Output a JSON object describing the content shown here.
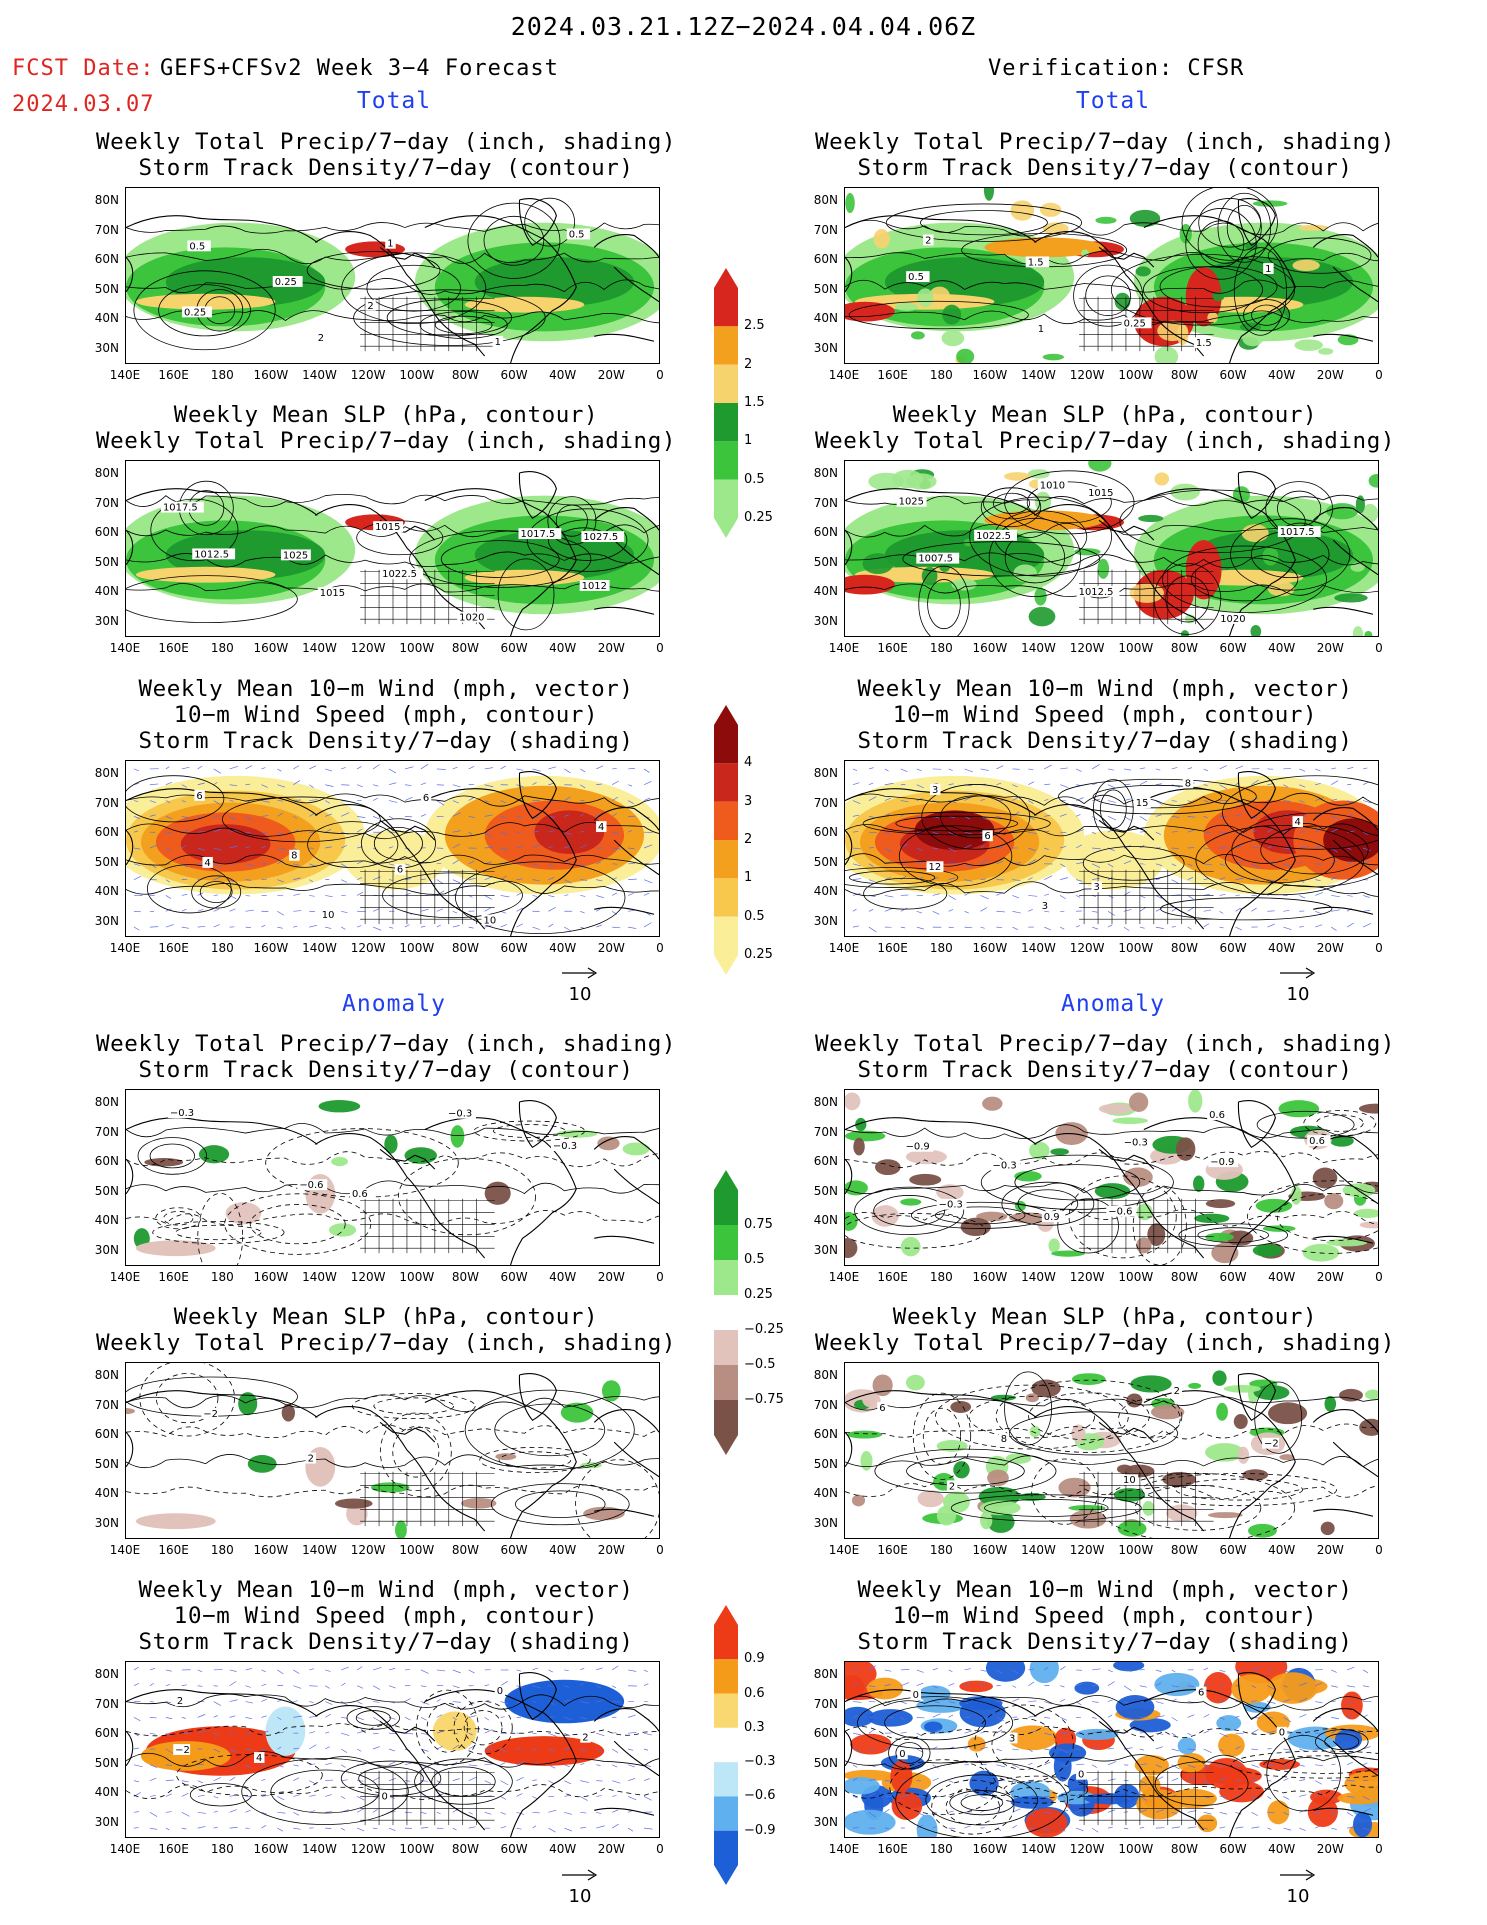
{
  "header": {
    "period": "2024.03.21.12Z−2024.04.04.06Z",
    "fcst_label": "FCST Date:",
    "fcst_model": "GEFS+CFSv2 Week 3−4 Forecast",
    "fcst_date": "2024.03.07",
    "verification": "Verification: CFSR"
  },
  "sections": {
    "total": "Total",
    "anomaly": "Anomaly"
  },
  "titles": {
    "precip_storm": [
      "Weekly Total Precip/7−day (inch, shading)",
      "Storm Track Density/7−day (contour)"
    ],
    "slp_precip": [
      "Weekly Mean SLP (hPa, contour)",
      "Weekly Total Precip/7−day (inch, shading)"
    ],
    "wind_storm": [
      "Weekly Mean 10−m Wind (mph, vector)",
      "10−m Wind Speed (mph, contour)",
      "Storm Track Density/7−day (shading)"
    ]
  },
  "axes": {
    "lat_labels": [
      "80N",
      "70N",
      "60N",
      "50N",
      "40N",
      "30N"
    ],
    "lon_labels": [
      "140E",
      "160E",
      "180",
      "160W",
      "140W",
      "120W",
      "100W",
      "80W",
      "60W",
      "40W",
      "20W",
      "0"
    ]
  },
  "vector_ref": "10",
  "colorbars": {
    "total_precip": {
      "labels": [
        "2.5",
        "2",
        "1.5",
        "1",
        "0.5",
        "0.25"
      ],
      "colors": [
        "#d7261e",
        "#f4a01f",
        "#f7d36e",
        "#1e9a2e",
        "#3cc43c",
        "#9ee88c"
      ]
    },
    "total_storm": {
      "labels": [
        "4",
        "3",
        "2",
        "1",
        "0.5",
        "0.25"
      ],
      "colors": [
        "#8e0b0b",
        "#c9261c",
        "#ee5b1c",
        "#f4a01f",
        "#f7c84c",
        "#fbee98"
      ]
    },
    "anom_precip": {
      "labels": [
        "0.75",
        "0.5",
        "0.25",
        "−0.25",
        "−0.5",
        "−0.75"
      ],
      "colors": [
        "#1e9a2e",
        "#3cc43c",
        "#9ee88c",
        "#ffffff",
        "#e2c3bc",
        "#b88e82",
        "#7a5248"
      ]
    },
    "anom_storm": {
      "labels": [
        "0.9",
        "0.6",
        "0.3",
        "−0.3",
        "−0.6",
        "−0.9"
      ],
      "colors": [
        "#ee3b17",
        "#f59b1a",
        "#f9d872",
        "#ffffff",
        "#bde7f7",
        "#5fb0ee",
        "#1d5fd6"
      ]
    },
    "wind_total_storm": {
      "labels": [
        "4",
        "3",
        "2",
        "1",
        "0.5",
        "0.25"
      ]
    }
  },
  "contour_labels": {
    "fc_total_precip": [
      "0.5",
      "0.25",
      "2",
      "1",
      "0.5",
      "0.25",
      "2",
      "1"
    ],
    "vf_total_precip": [
      "2",
      "1.5",
      "0.25",
      "1.5",
      "1",
      "0.5",
      "1"
    ],
    "fc_total_slp": [
      "1017.5",
      "1025",
      "1022.5",
      "1020",
      "1027.5",
      "1012.5",
      "1015",
      "1015",
      "1017.5",
      "1012"
    ],
    "vf_total_slp": [
      "1025",
      "1022.5",
      "1012.5",
      "1020",
      "1017.5",
      "1007.5",
      "1010",
      "1015"
    ],
    "fc_total_wind": [
      "6",
      "8",
      "6",
      "10",
      "4",
      "4",
      "10",
      "6"
    ],
    "vf_total_wind": [
      "3",
      "6",
      "3",
      "8",
      "4",
      "12",
      "3",
      "15"
    ],
    "fc_anom_precip": [
      "−0.3",
      "−0.6",
      "0.6",
      "−0.3",
      "−0.3"
    ],
    "vf_anom_precip": [
      "−0.9",
      "−0.3",
      "−0.6",
      "0.6",
      "0.6",
      "−0.3",
      "0.9",
      "−0.3",
      "−0.9"
    ],
    "fc_anom_slp": [
      "−2",
      "2"
    ],
    "vf_anom_slp": [
      "6",
      "8",
      "10",
      "2",
      "−2",
      "2"
    ],
    "fc_anom_wind": [
      "2",
      "4",
      "0",
      "0",
      "2",
      "−2"
    ],
    "vf_anom_wind": [
      "0",
      "3",
      "0",
      "6",
      "0",
      "0"
    ]
  }
}
